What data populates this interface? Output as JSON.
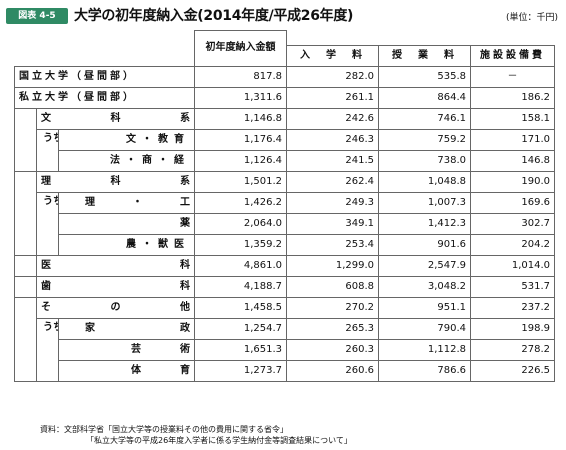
{
  "header": {
    "figure_tag": "図表 4-5",
    "title": "大学の初年度納入金(2014年度/平成26年度)",
    "unit": "(単位：千円)"
  },
  "table": {
    "columns": {
      "total": "初年度納入金額",
      "admission": "入　学　料",
      "tuition": "授　業　料",
      "facility": "施設設備費"
    },
    "rows": {
      "national": {
        "label": "国立大学（昼間部）",
        "total": "817.8",
        "admission": "282.0",
        "tuition": "535.8",
        "facility": "－"
      },
      "private": {
        "label": "私立大学（昼間部）",
        "total": "1,311.6",
        "admission": "261.1",
        "tuition": "864.4",
        "facility": "186.2"
      },
      "humanities": {
        "label_a": "文",
        "label_b": "科",
        "label_c": "系",
        "total": "1,146.8",
        "admission": "242.6",
        "tuition": "746.1",
        "facility": "158.1"
      },
      "lit_edu": {
        "prefix": "うち",
        "label": "文・教育",
        "total": "1,176.4",
        "admission": "246.3",
        "tuition": "759.2",
        "facility": "171.0"
      },
      "law_com_econ": {
        "label": "法・商・経",
        "total": "1,126.4",
        "admission": "241.5",
        "tuition": "738.0",
        "facility": "146.8"
      },
      "science": {
        "label_a": "理",
        "label_b": "科",
        "label_c": "系",
        "total": "1,501.2",
        "admission": "262.4",
        "tuition": "1,048.8",
        "facility": "190.0"
      },
      "sci_eng": {
        "prefix": "うち",
        "label_a": "理",
        "label_b": "・",
        "label_c": "工",
        "total": "1,426.2",
        "admission": "249.3",
        "tuition": "1,007.3",
        "facility": "169.6"
      },
      "pharmacy": {
        "label": "薬",
        "total": "2,064.0",
        "admission": "349.1",
        "tuition": "1,412.3",
        "facility": "302.7"
      },
      "agri_vet": {
        "label": "農・獣医",
        "total": "1,359.2",
        "admission": "253.4",
        "tuition": "901.6",
        "facility": "204.2"
      },
      "medicine": {
        "label_a": "医",
        "label_b": "科",
        "total": "4,861.0",
        "admission": "1,299.0",
        "tuition": "2,547.9",
        "facility": "1,014.0"
      },
      "dentistry": {
        "label_a": "歯",
        "label_b": "科",
        "total": "4,188.7",
        "admission": "608.8",
        "tuition": "3,048.2",
        "facility": "531.7"
      },
      "others": {
        "label_a": "そ",
        "label_b": "の",
        "label_c": "他",
        "total": "1,458.5",
        "admission": "270.2",
        "tuition": "951.1",
        "facility": "237.2"
      },
      "home_econ": {
        "prefix": "うち",
        "label_a": "家",
        "label_b": "政",
        "total": "1,254.7",
        "admission": "265.3",
        "tuition": "790.4",
        "facility": "198.9"
      },
      "arts": {
        "label_a": "芸",
        "label_b": "術",
        "total": "1,651.3",
        "admission": "260.3",
        "tuition": "1,112.8",
        "facility": "278.2"
      },
      "phys_ed": {
        "label_a": "体",
        "label_b": "育",
        "total": "1,273.7",
        "admission": "260.6",
        "tuition": "786.6",
        "facility": "226.5"
      }
    }
  },
  "footnote": {
    "line1": "資料：文部科学省「国立大学等の授業料その他の費用に関する省令」",
    "line2": "「私立大学等の平成26年度入学者に係る学生納付金等調査結果について」"
  }
}
